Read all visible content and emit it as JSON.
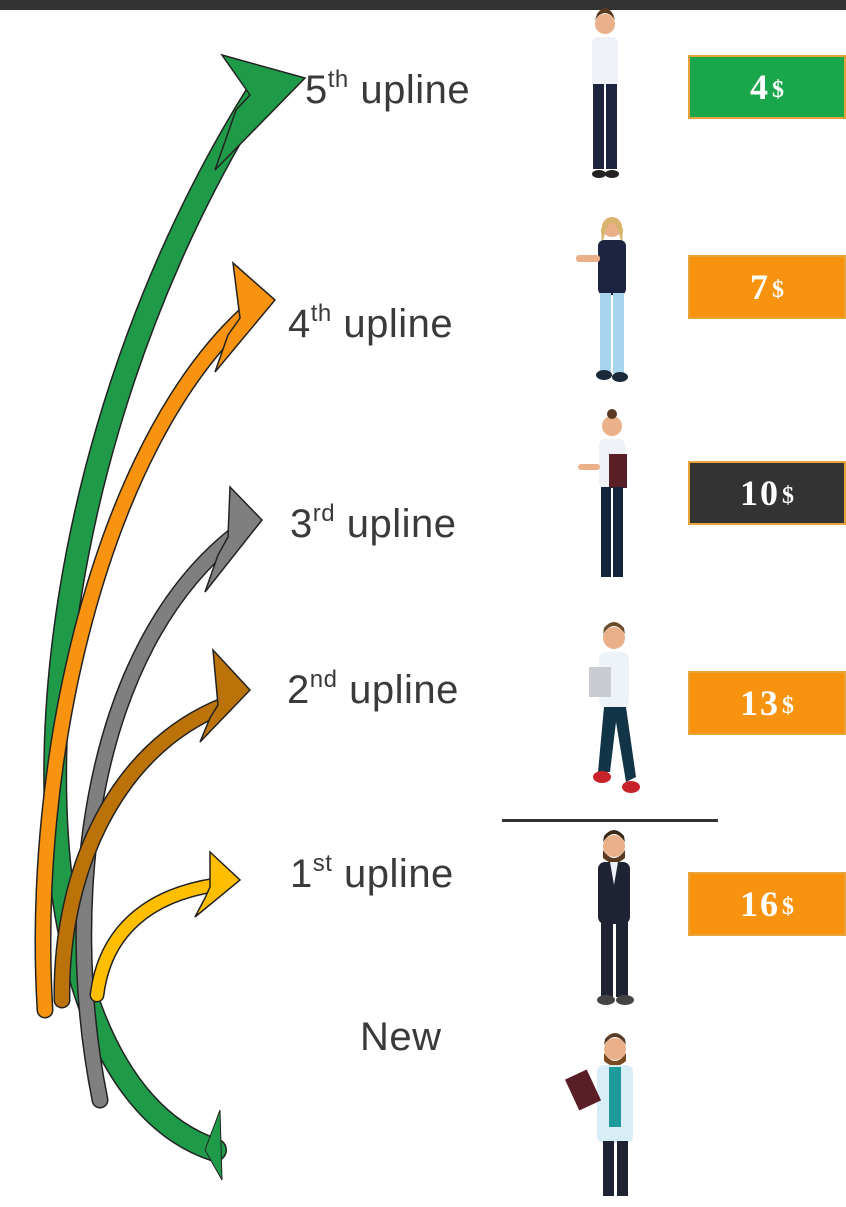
{
  "rows": [
    {
      "ordinal": "5",
      "suffix": "th",
      "label": "upline",
      "amount": "4",
      "currency": "$",
      "color": "#1aa64a"
    },
    {
      "ordinal": "4",
      "suffix": "th",
      "label": "upline",
      "amount": "7",
      "currency": "$",
      "color": "#f7930e"
    },
    {
      "ordinal": "3",
      "suffix": "rd",
      "label": "upline",
      "amount": "10",
      "currency": "$",
      "color": "#333333"
    },
    {
      "ordinal": "2",
      "suffix": "nd",
      "label": "upline",
      "amount": "13",
      "currency": "$",
      "color": "#f7930e"
    },
    {
      "ordinal": "1",
      "suffix": "st",
      "label": "upline",
      "amount": "16",
      "currency": "$",
      "color": "#f7930e"
    }
  ],
  "new_label": "New"
}
